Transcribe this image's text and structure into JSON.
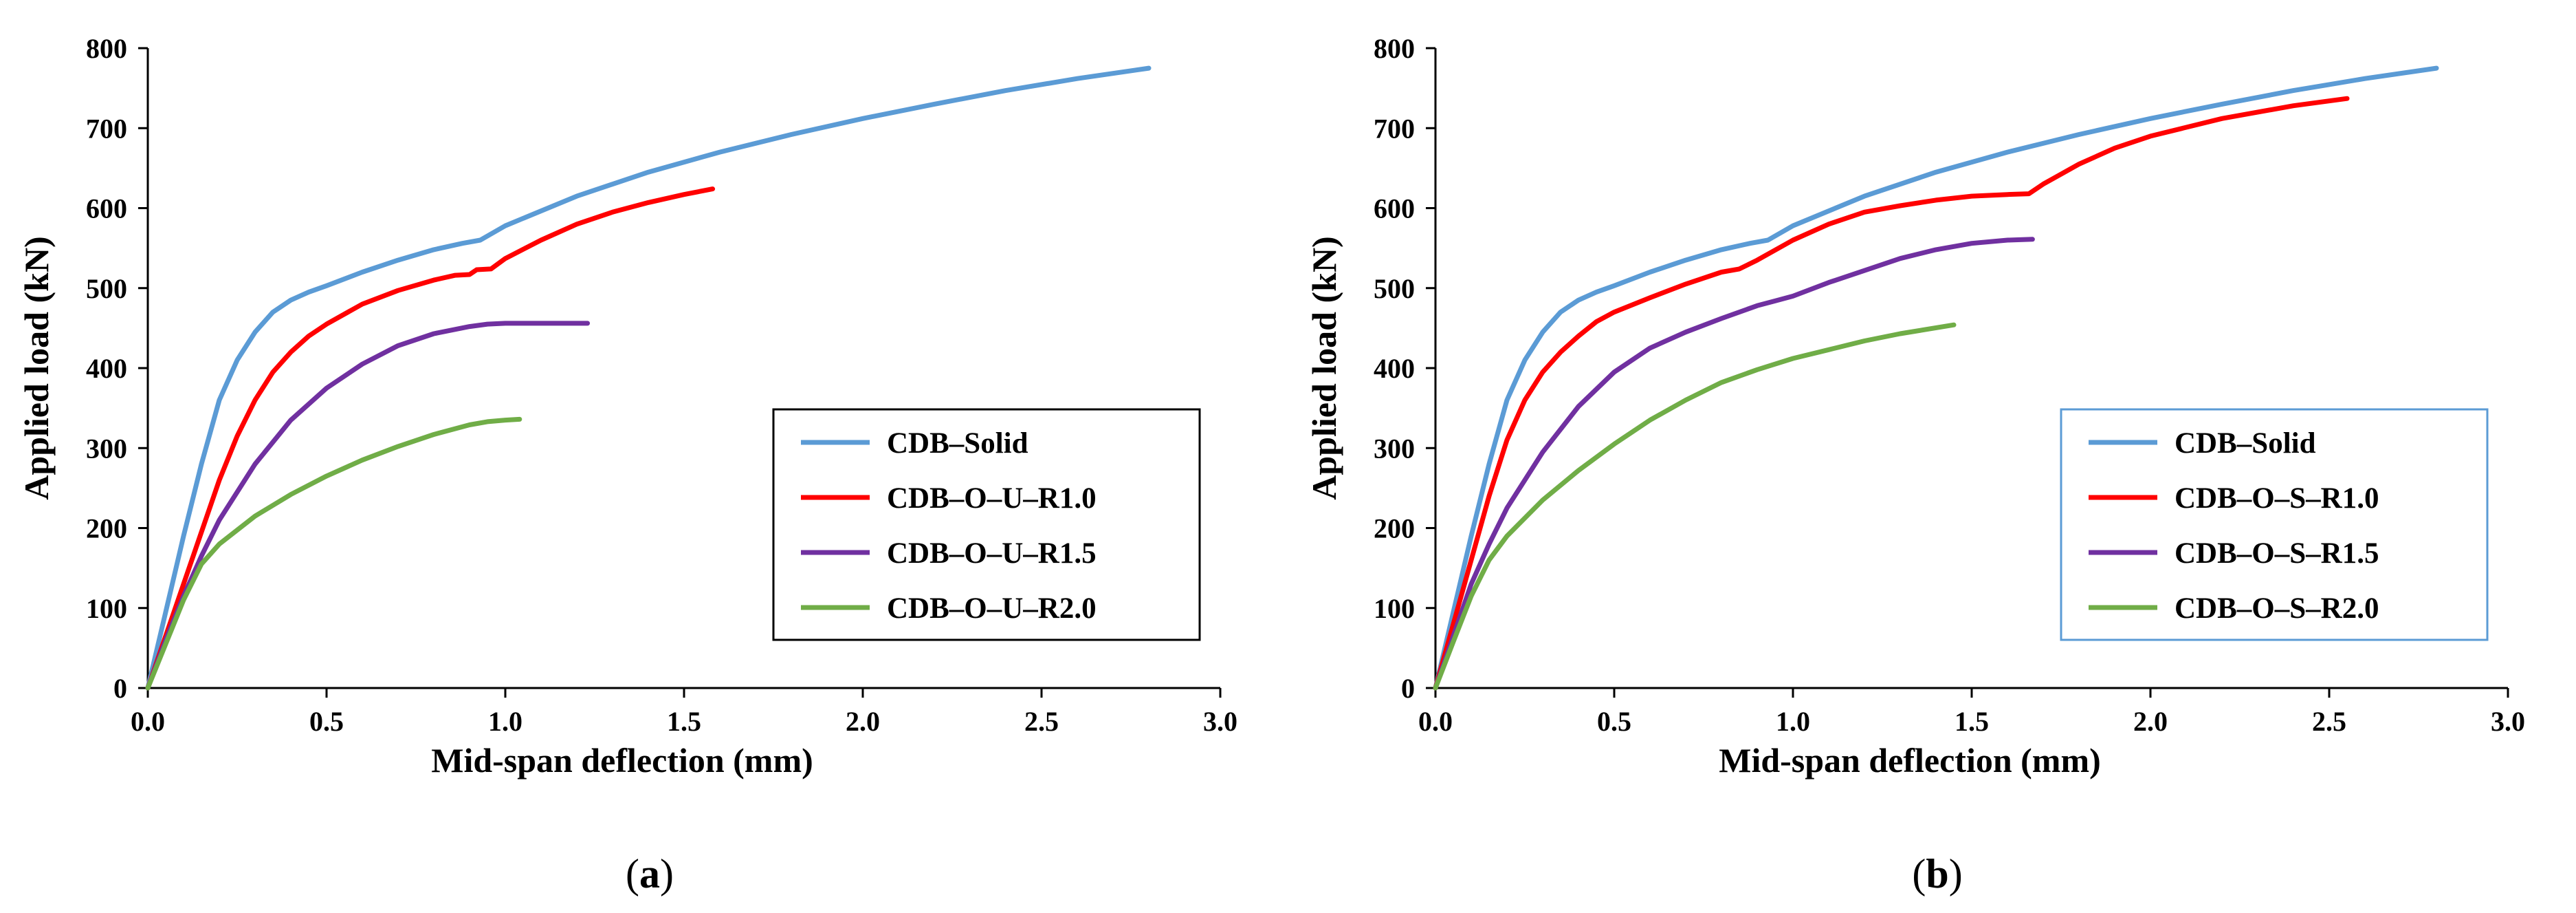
{
  "chart_data": [
    {
      "type": "line",
      "panel_label": "a",
      "panel_label_text": "(a)",
      "xlabel": "Mid-span  deflection (mm)",
      "ylabel": "Applied  load (kN)",
      "xlim": [
        0,
        3.0
      ],
      "ylim": [
        0,
        800
      ],
      "xticks": [
        "0.0",
        "0.5",
        "1.0",
        "1.5",
        "2.0",
        "2.5",
        "3.0"
      ],
      "yticks": [
        "0",
        "100",
        "200",
        "300",
        "400",
        "500",
        "600",
        "700",
        "800"
      ],
      "legend_position": "lower-right",
      "legend_border_color": "#000000",
      "series": [
        {
          "name": "CDB–Solid",
          "color": "#5b9bd5",
          "x": [
            0,
            0.05,
            0.1,
            0.15,
            0.2,
            0.25,
            0.3,
            0.35,
            0.4,
            0.45,
            0.5,
            0.6,
            0.7,
            0.8,
            0.88,
            0.93,
            1.0,
            1.2,
            1.4,
            1.6,
            1.8,
            2.0,
            2.2,
            2.4,
            2.6,
            2.8
          ],
          "y": [
            0,
            95,
            190,
            280,
            360,
            410,
            445,
            470,
            485,
            495,
            503,
            520,
            535,
            548,
            556,
            560,
            578,
            615,
            645,
            670,
            692,
            712,
            730,
            747,
            762,
            775
          ]
        },
        {
          "name": "CDB–O–U–R1.0",
          "color": "#ff0000",
          "x": [
            0,
            0.05,
            0.1,
            0.15,
            0.2,
            0.25,
            0.3,
            0.35,
            0.4,
            0.45,
            0.5,
            0.6,
            0.7,
            0.8,
            0.86,
            0.9,
            0.92,
            0.96,
            1.0,
            1.1,
            1.2,
            1.3,
            1.4,
            1.5,
            1.58
          ],
          "y": [
            0,
            65,
            130,
            195,
            260,
            315,
            360,
            395,
            420,
            440,
            455,
            480,
            497,
            510,
            516,
            517,
            523,
            524,
            537,
            560,
            580,
            595,
            607,
            617,
            624
          ]
        },
        {
          "name": "CDB–O–U–R1.5",
          "color": "#7030a0",
          "x": [
            0,
            0.05,
            0.1,
            0.15,
            0.2,
            0.3,
            0.4,
            0.5,
            0.6,
            0.7,
            0.8,
            0.9,
            0.95,
            1.0,
            1.1,
            1.23
          ],
          "y": [
            0,
            60,
            115,
            165,
            210,
            280,
            335,
            375,
            405,
            428,
            443,
            452,
            455,
            456,
            456,
            456
          ]
        },
        {
          "name": "CDB–O–U–R2.0",
          "color": "#70ad47",
          "x": [
            0,
            0.05,
            0.1,
            0.15,
            0.2,
            0.3,
            0.4,
            0.5,
            0.6,
            0.7,
            0.8,
            0.9,
            0.95,
            1.0,
            1.04
          ],
          "y": [
            0,
            55,
            110,
            155,
            180,
            215,
            242,
            265,
            285,
            302,
            317,
            329,
            333,
            335,
            336
          ]
        }
      ]
    },
    {
      "type": "line",
      "panel_label": "b",
      "panel_label_text": "(b)",
      "xlabel": "Mid-span  deflection (mm)",
      "ylabel": "Applied  load (kN)",
      "xlim": [
        0,
        3.0
      ],
      "ylim": [
        0,
        800
      ],
      "xticks": [
        "0.0",
        "0.5",
        "1.0",
        "1.5",
        "2.0",
        "2.5",
        "3.0"
      ],
      "yticks": [
        "0",
        "100",
        "200",
        "300",
        "400",
        "500",
        "600",
        "700",
        "800"
      ],
      "legend_position": "lower-right",
      "legend_border_color": "#5b9bd5",
      "series": [
        {
          "name": "CDB–Solid",
          "color": "#5b9bd5",
          "x": [
            0,
            0.05,
            0.1,
            0.15,
            0.2,
            0.25,
            0.3,
            0.35,
            0.4,
            0.45,
            0.5,
            0.6,
            0.7,
            0.8,
            0.88,
            0.93,
            1.0,
            1.2,
            1.4,
            1.6,
            1.8,
            2.0,
            2.2,
            2.4,
            2.6,
            2.8
          ],
          "y": [
            0,
            95,
            190,
            280,
            360,
            410,
            445,
            470,
            485,
            495,
            503,
            520,
            535,
            548,
            556,
            560,
            578,
            615,
            645,
            670,
            692,
            712,
            730,
            747,
            762,
            775
          ]
        },
        {
          "name": "CDB–O–S–R1.0",
          "color": "#ff0000",
          "x": [
            0,
            0.05,
            0.1,
            0.15,
            0.2,
            0.25,
            0.3,
            0.35,
            0.4,
            0.45,
            0.5,
            0.6,
            0.7,
            0.8,
            0.85,
            0.9,
            1.0,
            1.1,
            1.2,
            1.3,
            1.4,
            1.5,
            1.6,
            1.66,
            1.7,
            1.8,
            1.9,
            2.0,
            2.2,
            2.4,
            2.55
          ],
          "y": [
            0,
            80,
            160,
            240,
            310,
            360,
            395,
            420,
            440,
            458,
            470,
            488,
            505,
            520,
            524,
            535,
            560,
            580,
            595,
            603,
            610,
            615,
            617,
            618,
            630,
            655,
            675,
            690,
            712,
            728,
            737
          ]
        },
        {
          "name": "CDB–O–S–R1.5",
          "color": "#7030a0",
          "x": [
            0,
            0.05,
            0.1,
            0.15,
            0.2,
            0.3,
            0.4,
            0.5,
            0.6,
            0.7,
            0.8,
            0.9,
            0.95,
            1.0,
            1.1,
            1.2,
            1.3,
            1.4,
            1.5,
            1.6,
            1.67
          ],
          "y": [
            0,
            65,
            130,
            180,
            225,
            295,
            352,
            395,
            425,
            445,
            462,
            478,
            484,
            490,
            507,
            522,
            537,
            548,
            556,
            560,
            561
          ]
        },
        {
          "name": "CDB–O–S–R2.0",
          "color": "#70ad47",
          "x": [
            0,
            0.05,
            0.1,
            0.15,
            0.2,
            0.3,
            0.4,
            0.5,
            0.6,
            0.7,
            0.8,
            0.9,
            1.0,
            1.1,
            1.2,
            1.3,
            1.45
          ],
          "y": [
            0,
            58,
            115,
            160,
            190,
            235,
            272,
            305,
            335,
            360,
            382,
            398,
            412,
            423,
            434,
            443,
            454
          ]
        }
      ]
    }
  ]
}
